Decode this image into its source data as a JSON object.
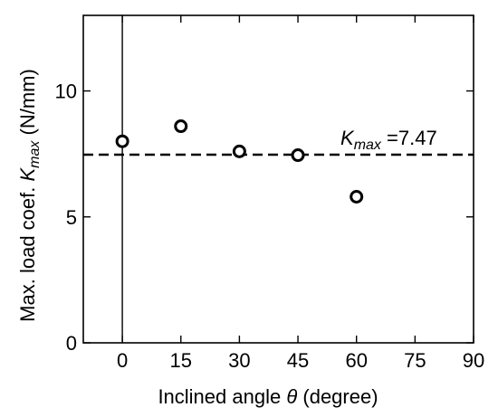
{
  "chart_data": {
    "type": "scatter",
    "xlabel": {
      "prefix": "Inclined angle ",
      "symbol": "θ",
      "suffix": " (degree)"
    },
    "ylabel": {
      "prefix": "Max. load coef. ",
      "symbol": "K",
      "subscript": "max",
      "suffix": " (N/mm)"
    },
    "xlim": [
      -10,
      90
    ],
    "ylim": [
      0,
      13
    ],
    "x_ticks": [
      0,
      15,
      30,
      45,
      60,
      75,
      90
    ],
    "y_ticks": [
      0,
      5,
      10
    ],
    "marker": "open-circle",
    "series": [
      {
        "x": [
          0,
          15,
          30,
          45,
          60
        ],
        "y": [
          8.0,
          8.6,
          7.6,
          7.45,
          5.8
        ]
      }
    ],
    "reference_line": {
      "y": 7.47,
      "style": "dashed"
    },
    "reference_vline": {
      "x": 0,
      "style": "solid"
    },
    "annotation": {
      "symbol": "K",
      "subscript": "max",
      "text": " =7.47"
    },
    "grid": false
  }
}
